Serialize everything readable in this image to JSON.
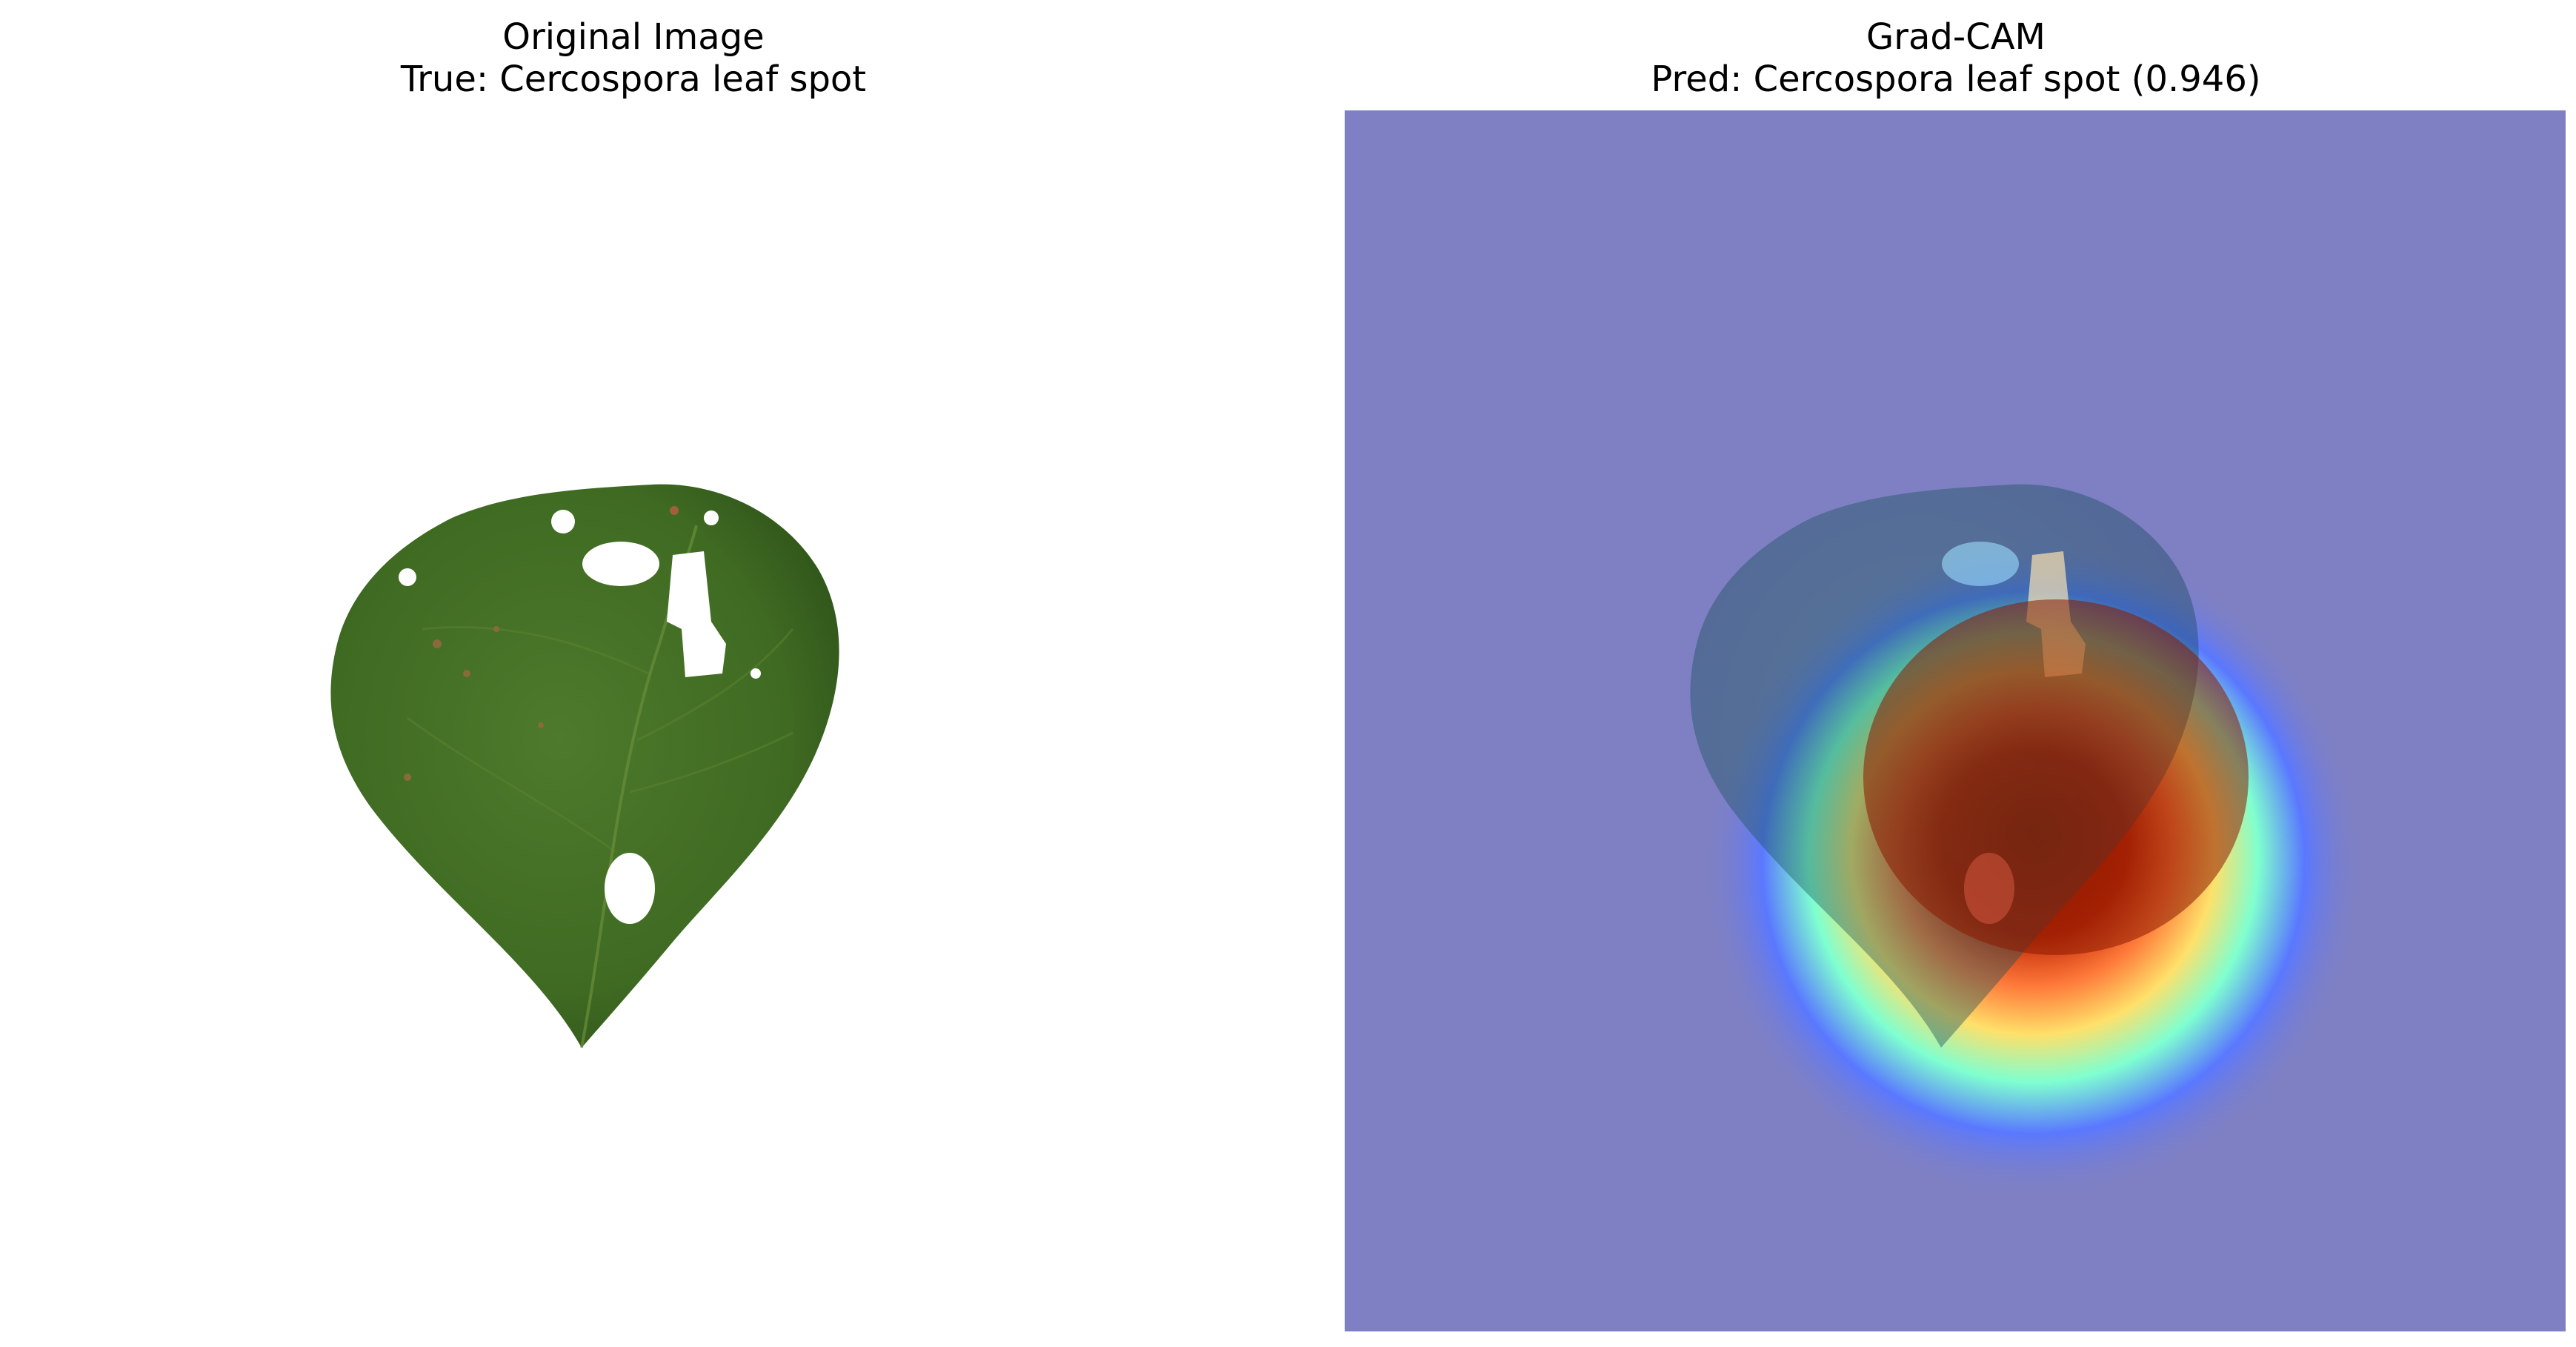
{
  "figure": {
    "panels": [
      {
        "title_line1": "Original Image",
        "title_line2": "True: Cercospora leaf spot",
        "image": "leaf-photo"
      },
      {
        "title_line1": "Grad-CAM",
        "title_line2": "Pred: Cercospora leaf spot (0.946)",
        "image": "gradcam-heatmap-overlay"
      }
    ]
  },
  "colors": {
    "leaf": "#3f6a22",
    "leaf_dark": "#2c4f18",
    "overlay_base": "#7f80c4",
    "heat_hot": "#8b1a00",
    "heat_cold": "#2b5fff"
  }
}
